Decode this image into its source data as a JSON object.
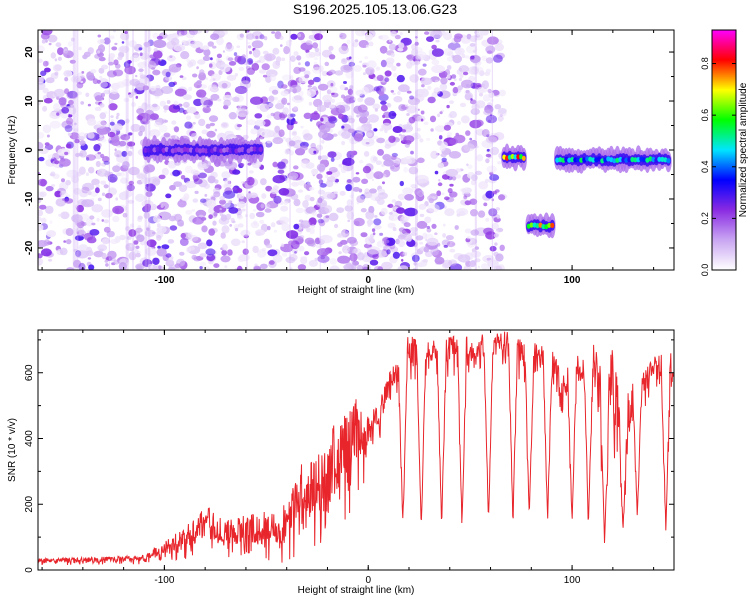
{
  "figure": {
    "title": "S196.2025.105.13.06.G23"
  },
  "colors": {
    "snr_line": "#e8252b",
    "axis": "#000000",
    "background": "#ffffff"
  },
  "chart_data": [
    {
      "type": "heatmap",
      "title": "S196.2025.105.13.06.G23",
      "xlabel": "Height of straight line (km)",
      "ylabel": "Frequency (Hz)",
      "xlim": [
        -162,
        150
      ],
      "ylim": [
        -24.5,
        24.5
      ],
      "xticks": [
        -100,
        0,
        100
      ],
      "yticks": [
        -20,
        -10,
        0,
        10,
        20
      ],
      "colorbar": {
        "label": "Normalized spectral amplitude",
        "range": [
          0,
          0.93
        ],
        "ticks": [
          0.0,
          0.2,
          0.4,
          0.6,
          0.8
        ],
        "colormap": [
          "#ffffff",
          "#c9a6f2",
          "#8a2be2",
          "#0000ff",
          "#00e5ff",
          "#00ff00",
          "#ffff00",
          "#ff0000",
          "#ff00ff"
        ]
      },
      "features": [
        {
          "name": "noise",
          "x_start": -162,
          "x_end": 66,
          "y_center": 0,
          "amplitude": 0.12
        },
        {
          "name": "band",
          "x_start": -110,
          "x_end": -52,
          "y_center": 0,
          "amplitude": 0.3
        },
        {
          "name": "band",
          "x_start": 66,
          "x_end": 77,
          "y_center": -1.5,
          "amplitude": 0.85
        },
        {
          "name": "band",
          "x_start": 78,
          "x_end": 91,
          "y_center": -15.5,
          "amplitude": 0.82
        },
        {
          "name": "band",
          "x_start": 92,
          "x_end": 148,
          "y_center": -2,
          "amplitude": 0.55
        }
      ]
    },
    {
      "type": "line",
      "xlabel": "Height of straight line (km)",
      "ylabel": "SNR (10 * v/v)",
      "xlim": [
        -162,
        150
      ],
      "ylim": [
        0,
        730
      ],
      "xticks": [
        -100,
        0,
        100
      ],
      "yticks": [
        0,
        200,
        400,
        600
      ],
      "series": [
        {
          "envelope": {
            "x": [
              -162,
              -130,
              -110,
              -100,
              -90,
              -80,
              -70,
              -60,
              -50,
              -40,
              -35,
              -30,
              -20,
              -15,
              -10,
              -5,
              0,
              5,
              10,
              20,
              30,
              40,
              50,
              60,
              70,
              80,
              90,
              95,
              100,
              110,
              115,
              120,
              125,
              130,
              140,
              150
            ],
            "top": [
              35,
              40,
              45,
              90,
              130,
              200,
              150,
              170,
              180,
              200,
              300,
              350,
              380,
              500,
              480,
              540,
              480,
              500,
              600,
              720,
              700,
              710,
              720,
              715,
              730,
              700,
              680,
              600,
              680,
              700,
              620,
              700,
              500,
              580,
              650,
              670
            ],
            "low": [
              15,
              15,
              15,
              20,
              30,
              40,
              40,
              30,
              20,
              20,
              40,
              60,
              80,
              100,
              150,
              200,
              300,
              380,
              500,
              550,
              600,
              580,
              600,
              620,
              600,
              550,
              550,
              400,
              550,
              500,
              350,
              300,
              300,
              400,
              550,
              500
            ]
          },
          "dips": [
            {
              "x": 17,
              "value": 130
            },
            {
              "x": 26,
              "value": 105
            },
            {
              "x": 36,
              "value": 120
            },
            {
              "x": 46,
              "value": 120
            },
            {
              "x": 59,
              "value": 130
            },
            {
              "x": 71,
              "value": 130
            },
            {
              "x": 79,
              "value": 150
            },
            {
              "x": 88,
              "value": 140
            },
            {
              "x": 100,
              "value": 120
            },
            {
              "x": 108,
              "value": 120
            },
            {
              "x": 116,
              "value": 60
            },
            {
              "x": 125,
              "value": 110
            },
            {
              "x": 132,
              "value": 150
            },
            {
              "x": 146,
              "value": 110
            }
          ]
        }
      ]
    }
  ]
}
